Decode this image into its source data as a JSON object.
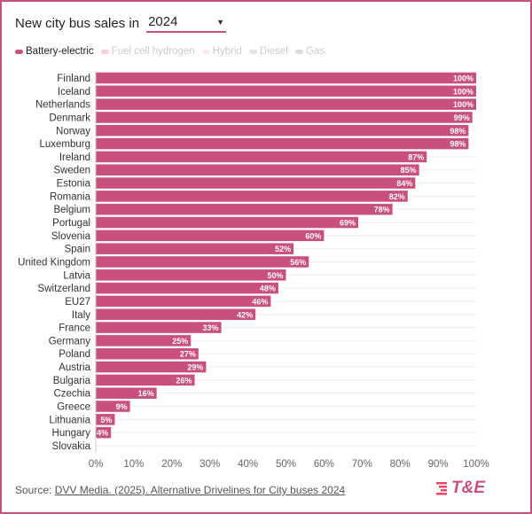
{
  "header": {
    "title": "New city bus sales in",
    "year": "2024"
  },
  "legend": [
    {
      "label": "Battery-electric",
      "color": "#c94f7c",
      "active": true
    },
    {
      "label": "Fuel cell hydrogen",
      "color": "#f6d2d6",
      "active": false
    },
    {
      "label": "Hybrid",
      "color": "#faeeea",
      "active": false
    },
    {
      "label": "Diesel",
      "color": "#e6e6e6",
      "active": false
    },
    {
      "label": "Gas",
      "color": "#dcdcdc",
      "active": false
    }
  ],
  "chart_data": {
    "type": "bar",
    "orientation": "horizontal",
    "title": "New city bus sales in 2024",
    "categories": [
      "Finland",
      "Iceland",
      "Netherlands",
      "Denmark",
      "Norway",
      "Luxemburg",
      "Ireland",
      "Sweden",
      "Estonia",
      "Romania",
      "Belgium",
      "Portugal",
      "Slovenia",
      "Spain",
      "United Kingdom",
      "Latvia",
      "Switzerland",
      "EU27",
      "Italy",
      "France",
      "Germany",
      "Poland",
      "Austria",
      "Bulgaria",
      "Czechia",
      "Greece",
      "Lithuania",
      "Hungary",
      "Slovakia"
    ],
    "series": [
      {
        "name": "Battery-electric",
        "values": [
          100,
          100,
          100,
          99,
          98,
          98,
          87,
          85,
          84,
          82,
          78,
          69,
          60,
          52,
          56,
          50,
          48,
          46,
          42,
          33,
          25,
          27,
          29,
          26,
          16,
          9,
          5,
          4,
          0
        ]
      }
    ],
    "labels": [
      "100%",
      "100%",
      "100%",
      "99%",
      "98%",
      "98%",
      "87%",
      "85%",
      "84%",
      "82%",
      "78%",
      "69%",
      "60%",
      "52%",
      "56%",
      "50%",
      "48%",
      "46%",
      "42%",
      "33%",
      "25%",
      "27%",
      "29%",
      "26%",
      "16%",
      "9%",
      "5%",
      "4%",
      ""
    ],
    "xlim": [
      0,
      100
    ],
    "xticks": [
      "0%",
      "10%",
      "20%",
      "30%",
      "40%",
      "50%",
      "60%",
      "70%",
      "80%",
      "90%",
      "100%"
    ],
    "grid": true,
    "bar_color": "#c94f7c"
  },
  "footer": {
    "source_prefix": "Source:",
    "source_link": "DVV Media. (2025). Alternative Drivelines for City buses 2024",
    "logo_text": "T&E"
  }
}
